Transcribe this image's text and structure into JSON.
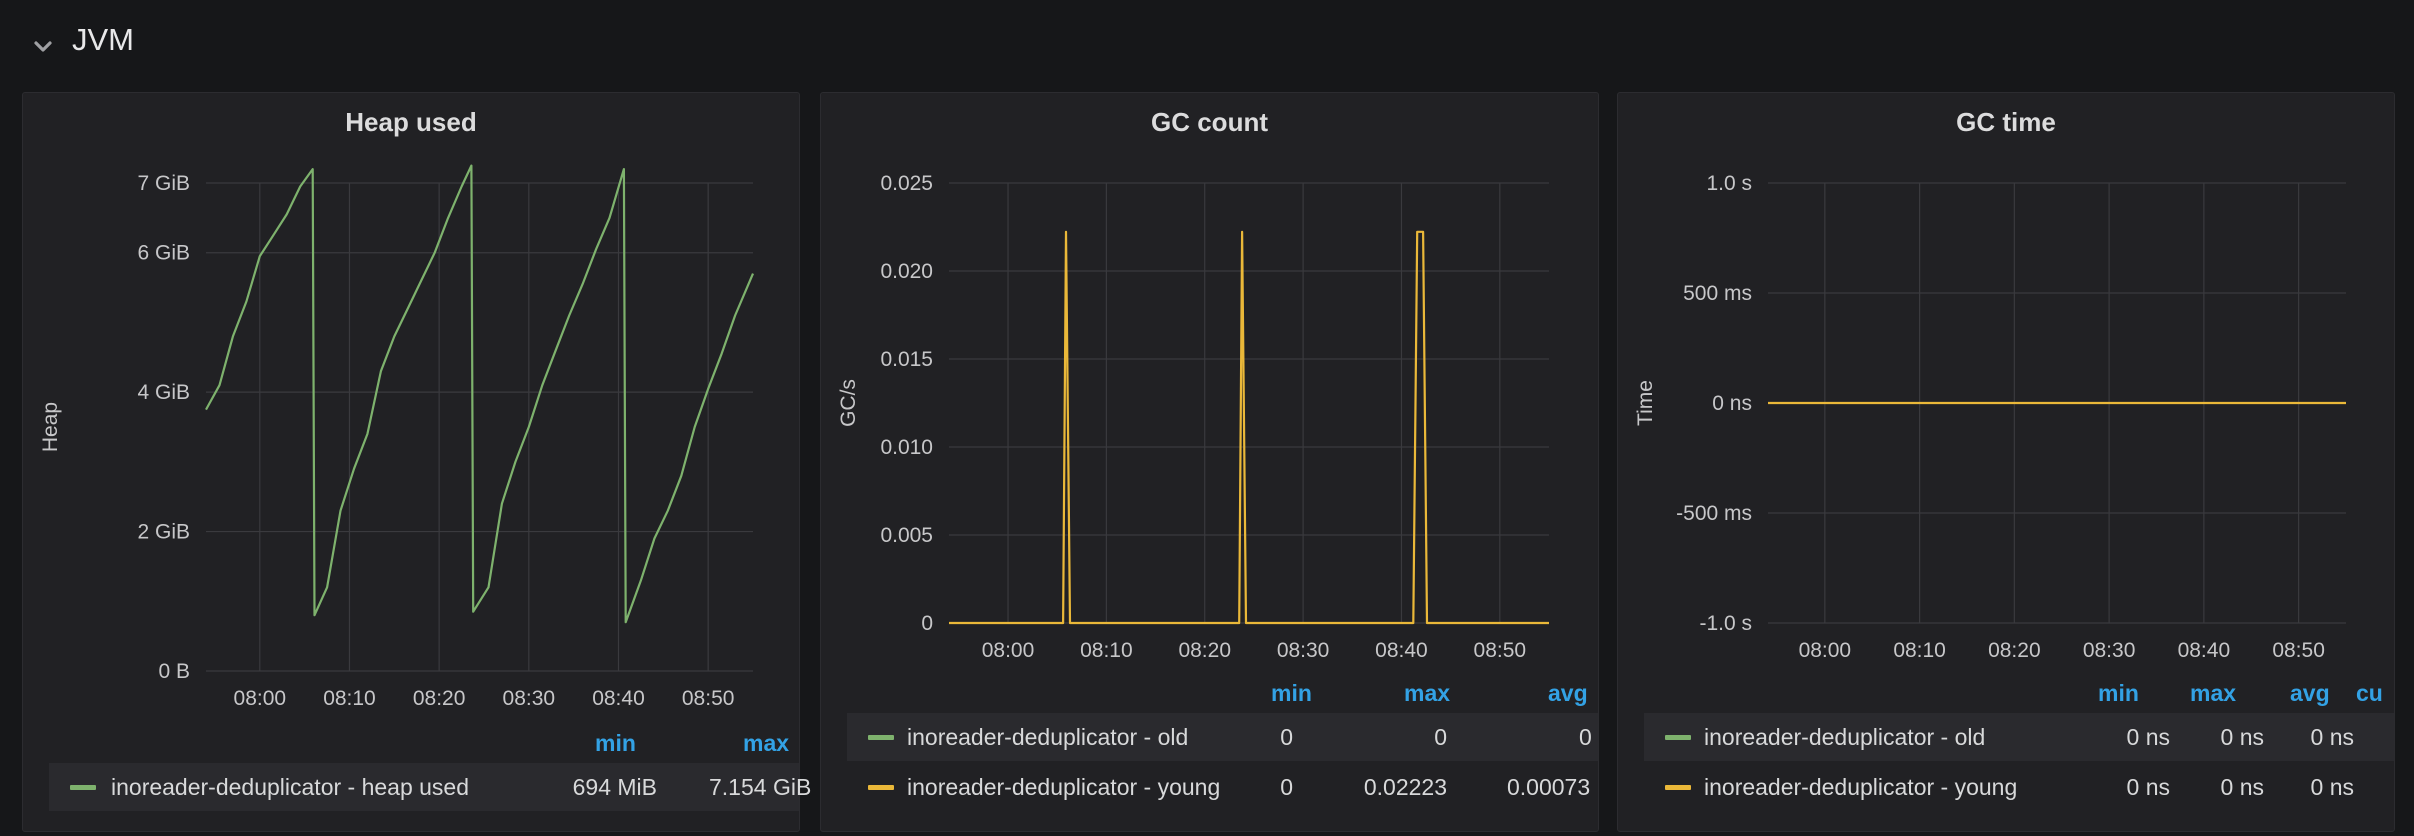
{
  "row": {
    "title": "JVM",
    "icon": "chevron-down-icon"
  },
  "panels": {
    "heap": {
      "title": "Heap used",
      "legend": {
        "headers": [
          "min",
          "max"
        ],
        "rows": [
          {
            "name": "inoreader-deduplicator - heap used",
            "color": "#7eb26d",
            "values": [
              "694 MiB",
              "7.154 GiB"
            ]
          }
        ]
      }
    },
    "gc_count": {
      "title": "GC count",
      "legend": {
        "headers": [
          "min",
          "max",
          "avg"
        ],
        "rows": [
          {
            "name": "inoreader-deduplicator - old",
            "color": "#7eb26d",
            "values": [
              "0",
              "0",
              "0"
            ]
          },
          {
            "name": "inoreader-deduplicator - young",
            "color": "#eab839",
            "values": [
              "0",
              "0.02223",
              "0.00073"
            ]
          }
        ]
      }
    },
    "gc_time": {
      "title": "GC time",
      "legend": {
        "headers": [
          "min",
          "max",
          "avg",
          "cu"
        ],
        "rows": [
          {
            "name": "inoreader-deduplicator - old",
            "color": "#7eb26d",
            "values": [
              "0 ns",
              "0 ns",
              "0 ns"
            ]
          },
          {
            "name": "inoreader-deduplicator - young",
            "color": "#eab839",
            "values": [
              "0 ns",
              "0 ns",
              "0 ns"
            ]
          }
        ]
      }
    }
  },
  "chart_data": [
    {
      "type": "line",
      "title": "Heap used",
      "ylabel": "Heap",
      "xlabel": "",
      "x_ticks": [
        "08:00",
        "08:10",
        "08:20",
        "08:30",
        "08:40",
        "08:50"
      ],
      "y_ticks": [
        "0 B",
        "2 GiB",
        "4 GiB",
        "6 GiB",
        "7 GiB"
      ],
      "y_tick_values": [
        0,
        2,
        4,
        6,
        7
      ],
      "xlim_minutes": [
        474,
        535
      ],
      "ylim_gib": [
        0,
        7
      ],
      "grid": true,
      "series": [
        {
          "name": "inoreader-deduplicator - heap used",
          "color": "#7eb26d",
          "points": [
            [
              474,
              3.75
            ],
            [
              475.5,
              4.1
            ],
            [
              477,
              4.8
            ],
            [
              478.5,
              5.3
            ],
            [
              480,
              5.95
            ],
            [
              481.5,
              6.25
            ],
            [
              483,
              6.55
            ],
            [
              484.5,
              6.95
            ],
            [
              485.9,
              7.2
            ],
            [
              486.1,
              0.8
            ],
            [
              487.5,
              1.2
            ],
            [
              489,
              2.3
            ],
            [
              490.5,
              2.9
            ],
            [
              492,
              3.4
            ],
            [
              493.5,
              4.3
            ],
            [
              495,
              4.8
            ],
            [
              496.5,
              5.2
            ],
            [
              498,
              5.6
            ],
            [
              499.5,
              6.0
            ],
            [
              501,
              6.5
            ],
            [
              502.5,
              6.95
            ],
            [
              503.6,
              7.25
            ],
            [
              503.8,
              0.85
            ],
            [
              505.5,
              1.2
            ],
            [
              507,
              2.4
            ],
            [
              508.5,
              3.0
            ],
            [
              510,
              3.5
            ],
            [
              511.5,
              4.1
            ],
            [
              513,
              4.6
            ],
            [
              514.5,
              5.1
            ],
            [
              516,
              5.55
            ],
            [
              517.5,
              6.05
            ],
            [
              519,
              6.5
            ],
            [
              520.6,
              7.2
            ],
            [
              520.8,
              0.7
            ],
            [
              522.5,
              1.3
            ],
            [
              524,
              1.9
            ],
            [
              525.5,
              2.3
            ],
            [
              527,
              2.8
            ],
            [
              528.5,
              3.5
            ],
            [
              530,
              4.05
            ],
            [
              531.5,
              4.55
            ],
            [
              533,
              5.1
            ],
            [
              535,
              5.7
            ]
          ]
        }
      ]
    },
    {
      "type": "line",
      "title": "GC count",
      "ylabel": "GC/s",
      "xlabel": "",
      "x_ticks": [
        "08:00",
        "08:10",
        "08:20",
        "08:30",
        "08:40",
        "08:50"
      ],
      "y_ticks": [
        "0",
        "0.005",
        "0.010",
        "0.015",
        "0.020",
        "0.025"
      ],
      "y_tick_values": [
        0,
        0.005,
        0.01,
        0.015,
        0.02,
        0.025
      ],
      "xlim_minutes": [
        474,
        535
      ],
      "ylim": [
        0,
        0.025
      ],
      "grid": true,
      "series": [
        {
          "name": "inoreader-deduplicator - young",
          "color": "#eab839",
          "points": [
            [
              474,
              0
            ],
            [
              485.6,
              0
            ],
            [
              485.9,
              0.02223
            ],
            [
              486.3,
              0
            ],
            [
              503.5,
              0
            ],
            [
              503.8,
              0.02223
            ],
            [
              504.2,
              0
            ],
            [
              521.2,
              0
            ],
            [
              521.6,
              0.02223
            ],
            [
              522.2,
              0.02223
            ],
            [
              522.6,
              0
            ],
            [
              535,
              0
            ]
          ]
        }
      ]
    },
    {
      "type": "line",
      "title": "GC time",
      "ylabel": "Time",
      "xlabel": "",
      "x_ticks": [
        "08:00",
        "08:10",
        "08:20",
        "08:30",
        "08:40",
        "08:50"
      ],
      "y_ticks": [
        "-1.0 s",
        "-500 ms",
        "0 ns",
        "500 ms",
        "1.0 s"
      ],
      "y_tick_values": [
        -1000,
        -500,
        0,
        500,
        1000
      ],
      "xlim_minutes": [
        474,
        535
      ],
      "ylim_ms": [
        -1000,
        1000
      ],
      "grid": true,
      "series": [
        {
          "name": "inoreader-deduplicator - young",
          "color": "#eab839",
          "points": [
            [
              474,
              0
            ],
            [
              535,
              0
            ]
          ]
        }
      ]
    }
  ]
}
